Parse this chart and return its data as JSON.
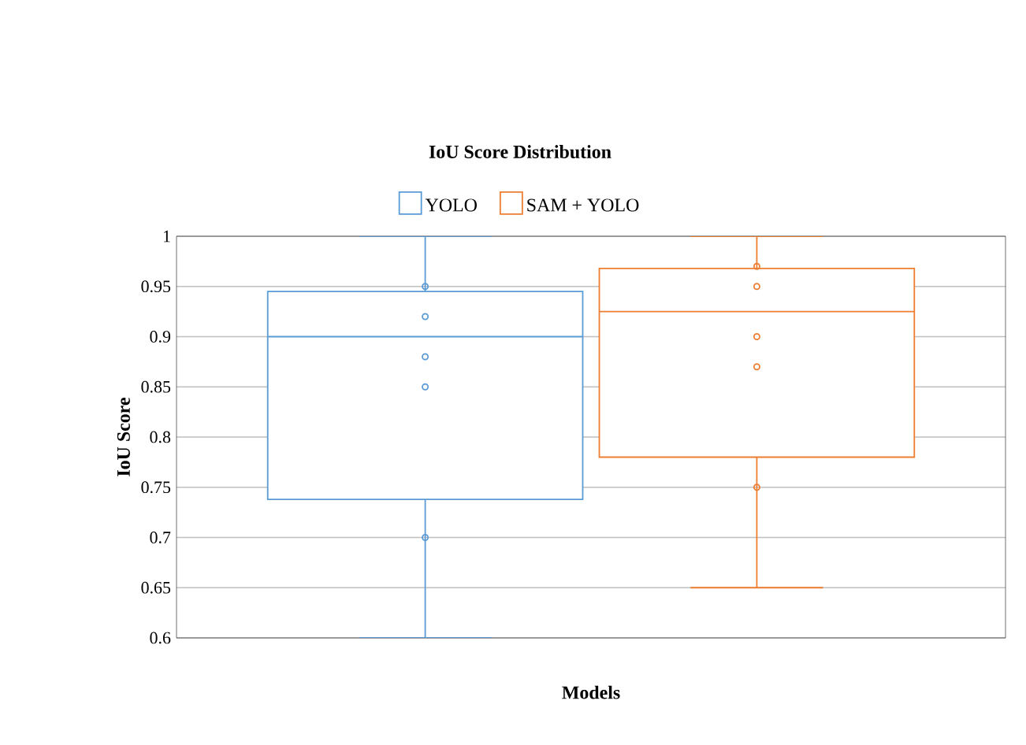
{
  "chart_data": {
    "type": "box",
    "title": "**IoU Score Distribution**",
    "xlabel": "**Models**",
    "ylabel": "**IoU Score**",
    "categories": [
      null
    ],
    "series": [
      {
        "name": "YOLO",
        "color": "#5b9bd5",
        "boxes": [
          {
            "low": 0.6,
            "q1": 0.738,
            "median": 0.9,
            "q3": 0.945,
            "high": 1.0,
            "outliers": [
              0.95,
              0.92,
              0.88,
              0.85,
              0.7
            ]
          }
        ]
      },
      {
        "name": "SAM + YOLO",
        "color": "#ed7d31",
        "boxes": [
          {
            "low": 0.65,
            "q1": 0.78,
            "median": 0.925,
            "q3": 0.968,
            "high": 1.0,
            "outliers": [
              0.97,
              0.95,
              0.9,
              0.87,
              0.75
            ]
          }
        ]
      }
    ],
    "ylim": [
      0.6,
      1
    ],
    "yticks": [
      0.6,
      0.65,
      0.7,
      0.75,
      0.8,
      0.85,
      0.9,
      0.95,
      1
    ],
    "grid": "y",
    "legend": "top",
    "marker": "circle"
  }
}
